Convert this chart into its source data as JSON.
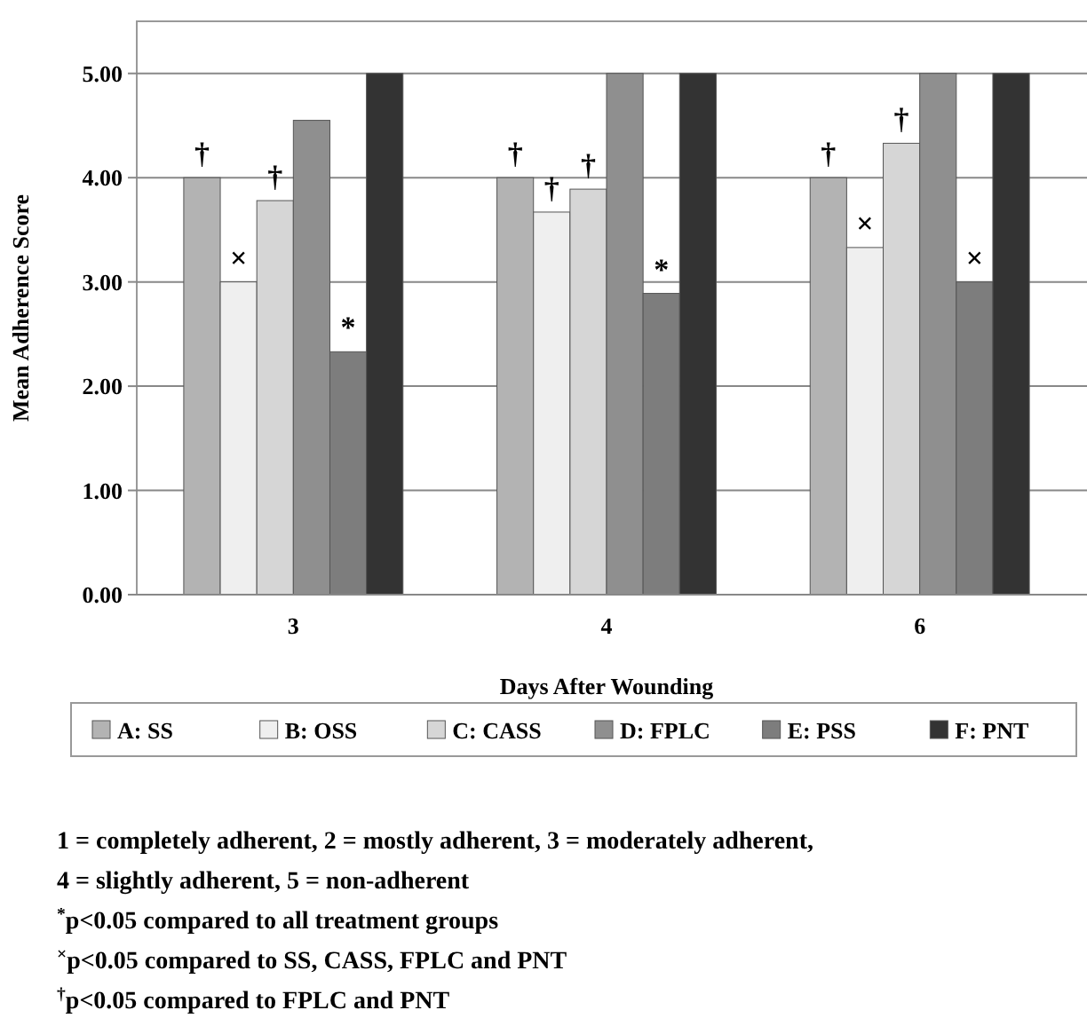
{
  "chart_data": {
    "type": "bar",
    "xlabel": "Days After Wounding",
    "ylabel": "Mean Adherence Score",
    "categories": [
      "3",
      "4",
      "6"
    ],
    "series": [
      {
        "name": "A: SS",
        "color": "#b3b3b3",
        "values": [
          4.0,
          4.0,
          4.0
        ]
      },
      {
        "name": "B: OSS",
        "color": "#efefef",
        "values": [
          3.0,
          3.67,
          3.33
        ]
      },
      {
        "name": "C: CASS",
        "color": "#d6d6d6",
        "values": [
          3.78,
          3.89,
          4.33
        ]
      },
      {
        "name": "D: FPLC",
        "color": "#8f8f8f",
        "values": [
          4.55,
          5.0,
          5.0
        ]
      },
      {
        "name": "E: PSS",
        "color": "#7d7d7d",
        "values": [
          2.33,
          2.89,
          3.0
        ]
      },
      {
        "name": "F: PNT",
        "color": "#333333",
        "values": [
          5.0,
          5.0,
          5.0
        ]
      }
    ],
    "ylim": [
      0,
      5.5
    ],
    "yticks": [
      {
        "value": 0,
        "label": "0.00"
      },
      {
        "value": 1,
        "label": "1.00"
      },
      {
        "value": 2,
        "label": "2.00"
      },
      {
        "value": 3,
        "label": "3.00"
      },
      {
        "value": 4,
        "label": "4.00"
      },
      {
        "value": 5,
        "label": "5.00"
      }
    ],
    "grid": "y",
    "legend": "bottom",
    "annotations": [
      {
        "text": "†",
        "x": "3",
        "y": 4.0
      },
      {
        "text": "×",
        "x": "3",
        "y": 3.0
      },
      {
        "text": "†",
        "x": "3",
        "y": 3.78
      },
      {
        "text": "*",
        "x": "3",
        "y": 2.33
      },
      {
        "text": "†",
        "x": "4",
        "y": 4.0
      },
      {
        "text": "†",
        "x": "4",
        "y": 3.67
      },
      {
        "text": "†",
        "x": "4",
        "y": 3.89
      },
      {
        "text": "*",
        "x": "4",
        "y": 2.89
      },
      {
        "text": "†",
        "x": "6",
        "y": 4.0
      },
      {
        "text": "×",
        "x": "6",
        "y": 3.33
      },
      {
        "text": "†",
        "x": "6",
        "y": 4.33
      },
      {
        "text": "×",
        "x": "6",
        "y": 3.0
      },
      "1 = completely adherent, 2 = mostly adherent, 3 = moderately adherent,",
      "4 = slightly adherent, 5 = non-adherent",
      "$^{*}$p<0.05 compared to all treatment groups",
      "$^{×}$p<0.05 compared to SS, CASS, FPLC and PNT",
      "$^{†}$p<0.05 compared to FPLC and PNT"
    ]
  }
}
